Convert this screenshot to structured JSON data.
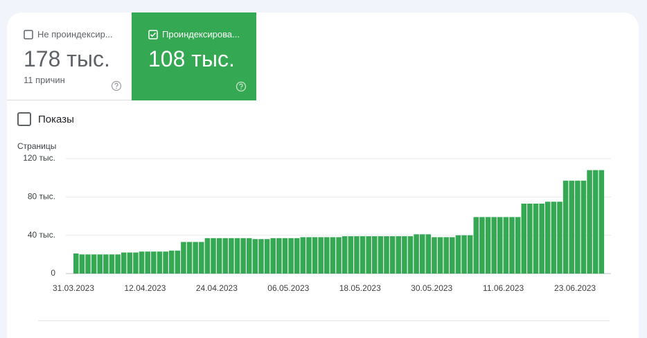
{
  "tabs": [
    {
      "label": "Не проиндексир...",
      "value": "178 тыс.",
      "sub": "11 причин"
    },
    {
      "label": "Проиндексирова...",
      "value": "108 тыс."
    }
  ],
  "impressions_toggle": "Показы",
  "chart_data": {
    "type": "bar",
    "y_label": "Страницы",
    "color": "#34a853",
    "grid": true,
    "ylim": [
      0,
      120
    ],
    "yticks": [
      0,
      {
        "value": 40,
        "label": "40 тыс."
      },
      {
        "value": 80,
        "label": "80 тыс."
      },
      {
        "value": 120,
        "label": "120 тыс."
      }
    ],
    "categories": [
      "31.03.2023",
      null,
      null,
      null,
      null,
      null,
      null,
      null,
      null,
      null,
      null,
      null,
      "12.04.2023",
      null,
      null,
      null,
      null,
      null,
      null,
      null,
      null,
      null,
      null,
      null,
      "24.04.2023",
      null,
      null,
      null,
      null,
      null,
      null,
      null,
      null,
      null,
      null,
      null,
      "06.05.2023",
      null,
      null,
      null,
      null,
      null,
      null,
      null,
      null,
      null,
      null,
      null,
      "18.05.2023",
      null,
      null,
      null,
      null,
      null,
      null,
      null,
      null,
      null,
      null,
      null,
      "30.05.2023",
      null,
      null,
      null,
      null,
      null,
      null,
      null,
      null,
      null,
      null,
      null,
      "11.06.2023",
      null,
      null,
      null,
      null,
      null,
      null,
      null,
      null,
      null,
      null,
      null,
      "23.06.2023",
      null,
      null,
      null,
      null
    ],
    "values": [
      21,
      20,
      20,
      20,
      20,
      20,
      20,
      20,
      22,
      22,
      22,
      23,
      23,
      23,
      23,
      23,
      24,
      24,
      33,
      33,
      33,
      33,
      37,
      37,
      37,
      37,
      37,
      37,
      37,
      37,
      36,
      36,
      36,
      37,
      37,
      37,
      37,
      37,
      38,
      38,
      38,
      38,
      38,
      38,
      38,
      39,
      39,
      39,
      39,
      39,
      39,
      39,
      39,
      39,
      39,
      39,
      39,
      41,
      41,
      41,
      38,
      38,
      38,
      38,
      40,
      40,
      40,
      59,
      59,
      59,
      59,
      59,
      59,
      59,
      59,
      73,
      73,
      73,
      73,
      75,
      75,
      75,
      97,
      97,
      97,
      97,
      108,
      108,
      108
    ]
  }
}
